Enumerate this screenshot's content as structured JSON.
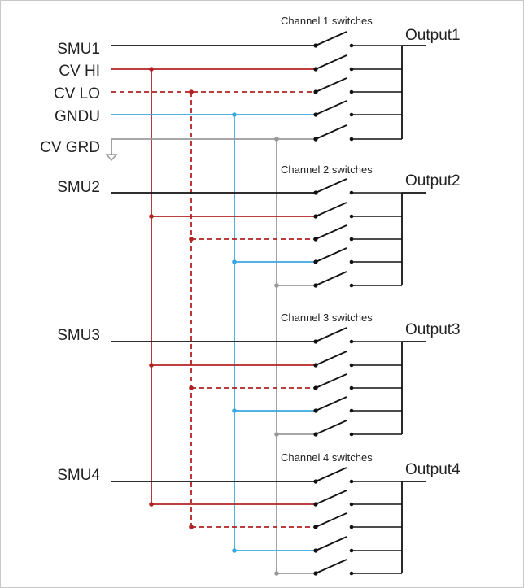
{
  "inputs": {
    "smu1": "SMU1",
    "cv_hi": "CV HI",
    "cv_lo": "CV LO",
    "gndu": "GNDU",
    "cv_grd": "CV GRD",
    "smu2": "SMU2",
    "smu3": "SMU3",
    "smu4": "SMU4"
  },
  "banks": [
    {
      "title": "Channel 1 switches",
      "output": "Output1"
    },
    {
      "title": "Channel 2 switches",
      "output": "Output2"
    },
    {
      "title": "Channel 3 switches",
      "output": "Output3"
    },
    {
      "title": "Channel 4 switches",
      "output": "Output4"
    }
  ],
  "colors": {
    "smu": "#111111",
    "cv_hi": "#b22222",
    "cv_lo": "#b22222",
    "gndu": "#3aa7e0",
    "cv_grd": "#999999",
    "switch": "#111111",
    "frame": "#c8c8c8"
  }
}
